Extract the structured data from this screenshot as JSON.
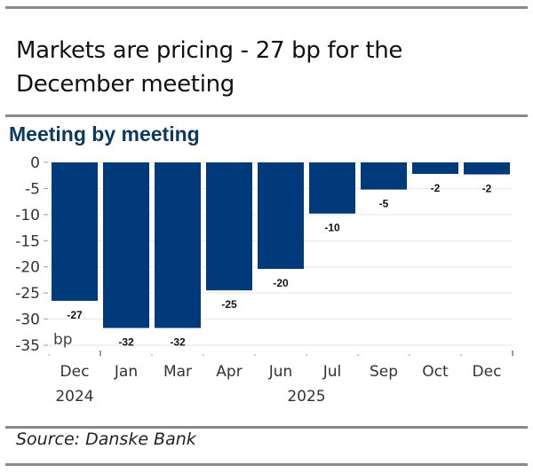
{
  "title": "Markets are pricing - 27 bp for the December meeting",
  "subtitle": "Meeting by meeting",
  "source": "Source: Danske Bank",
  "colors": {
    "bar": "#003a7a",
    "grid": "#e6e6e6",
    "rule": "#8a8a8a",
    "subtitle": "#0d3a5c"
  },
  "chart_data": {
    "type": "bar",
    "title": "Meeting by meeting",
    "xlabel": "",
    "ylabel": "bp",
    "unit_label": "bp",
    "categories": [
      "Dec",
      "Jan",
      "Mar",
      "Apr",
      "Jun",
      "Jul",
      "Sep",
      "Oct",
      "Dec"
    ],
    "year_labels": [
      {
        "label": "2024",
        "start_index": 0,
        "end_index": 0
      },
      {
        "label": "2025",
        "start_index": 1,
        "end_index": 8
      }
    ],
    "values": [
      -26.5,
      -31.7,
      -31.7,
      -24.5,
      -20.4,
      -9.8,
      -5.2,
      -2.2,
      -2.3
    ],
    "data_labels": [
      "-27",
      "-32",
      "-32",
      "-25",
      "-20",
      "-10",
      "-5",
      "-2",
      "-2"
    ],
    "ylim": [
      -35,
      0
    ],
    "yticks": [
      0,
      -5,
      -10,
      -15,
      -20,
      -25,
      -30,
      -35
    ],
    "grid": true,
    "legend": "none"
  }
}
